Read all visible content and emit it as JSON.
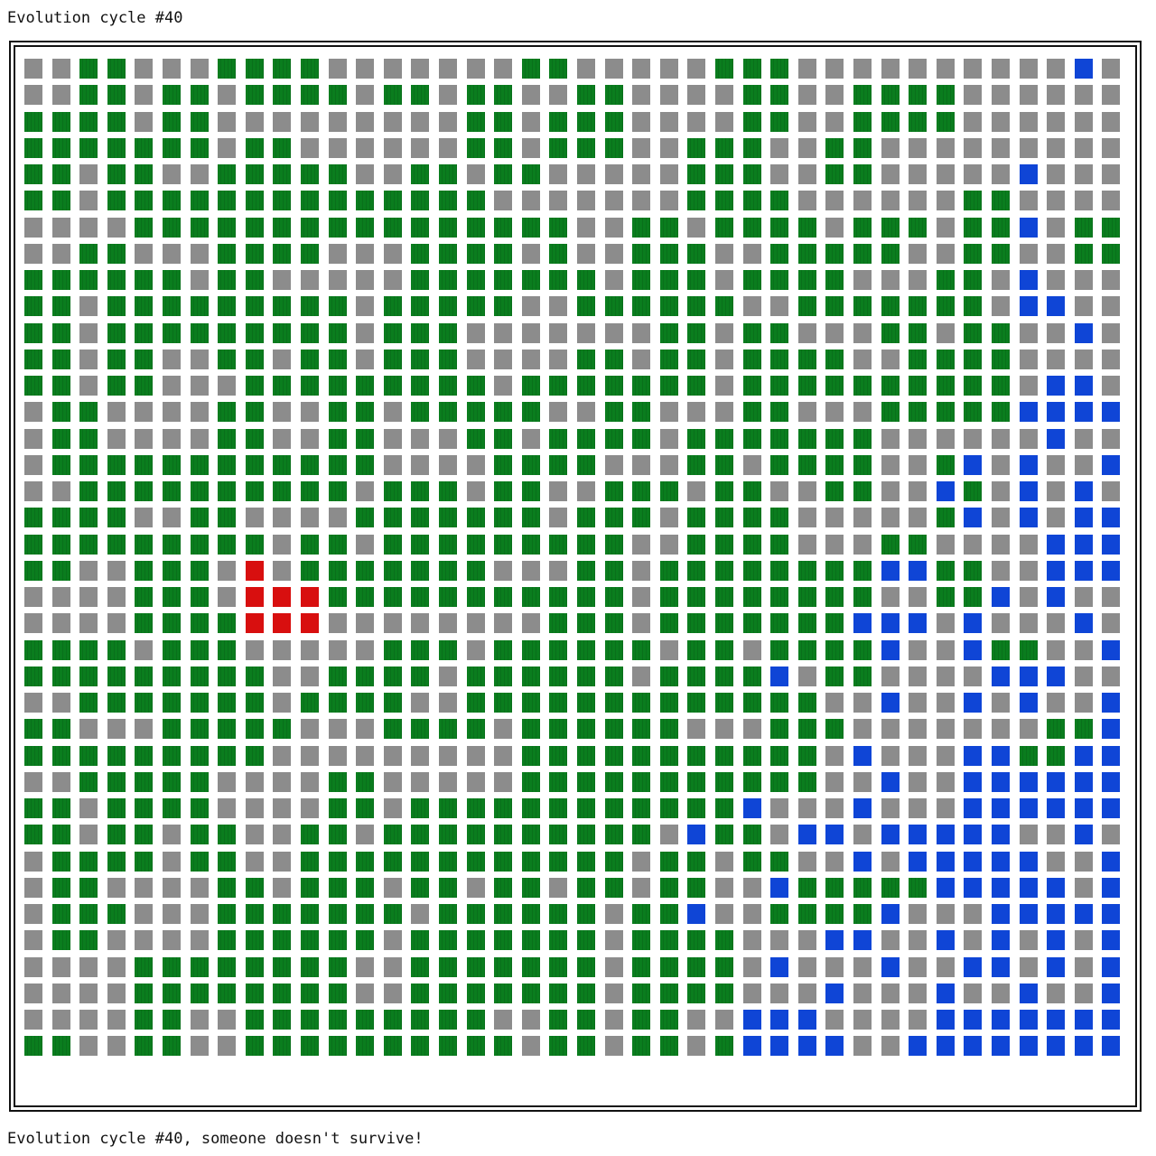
{
  "header": {
    "title": "Evolution cycle #40"
  },
  "footer": {
    "message": "Evolution cycle #40, someone doesn't survive!"
  },
  "colors": {
    "empty": "#8c8c8c",
    "forest": "#0a7d1e",
    "water": "#0f45d6",
    "creature": "#d80f0f"
  },
  "legend": {
    ".": "empty",
    "G": "forest",
    "B": "water",
    "R": "creature"
  },
  "board": {
    "cols": 40,
    "rows": 38,
    "grid": [
      "..GG...GGGG.......GG.....GGG..........B.",
      "..GG.GG.GGGG.GG.GG..GG....GG..GGGG......",
      "GGGG.GG.........GG.GGG....GG..GGGG......",
      "GGGGGGG.GG......GG.GGG..GGG..GG.........",
      "GG.GG..GGGGG..GG.GG.....GGG..GG.....B...",
      "GG.GGGGGGGGGGGGGG.......GGGG......GG....",
      "....GGGGGGGGGGGGGGGG..GG.GGGG.GGG.GGB.GG",
      "..GG...GGGG...GGGG.G..GGG..GGGGG..GG..GG",
      "GGGGGG.GG.....GGGGGGG.GGG.GGGG...GG.B...",
      "GG.GGGGGGGGG.GGGGG..GGGGGG..GGGGGGG.BB..",
      "GG.GGGGGGGGG.GGG.......GG.GG...GG.GG..B.",
      "GG.GG..GG.GG.GGG....GG.GG.GGGG..GGGG....",
      "GG.GG...GGGGGGGGG.GGGGGGG.GGGGGGGGGG.BB.",
      ".GG....GG..GG.GGGGG..GG...GG...GGGGGBBBB",
      ".GG....GG..GG...GG.GGGG.GGGGGGG......B..",
      ".GGGGGGGGGGGG....GGGG...GG.GGGG..GB.B..B",
      "..GGGGGGGGGG.GGG.GG..GGG.GG..GG..BG.B.B.",
      "GGGG..GG....GGGGGGG.GGG.GGGG.....GB.B.BB",
      "GGGGGGGGG.GG.GGGGGGGGG..GGGG...GG....BBB",
      "GG..GGG.R.GGGGGGG...GG.GGGGGGGGBBGG..BBB",
      "....GGG.RRRGGGGGGGGGGG.GGGGGGGG..GGB.B..",
      "....GGGGRRR........GGG.GGGGGGGBBB.B...B.",
      "GGGG.GGG.....GGG.GGGGGG.GG.GGGGB..BGG..B",
      "GGGGGGGGG..GGGG.GGGGGG.GGGGB.GG....BBB..",
      "..GGGGGGG.GGGG..GGGGGGGGGGGGG..B..B.B..B",
      "GG...GGGGG...GGGG.GGGGGG...GGG.......GGB",
      "GGGGGGGGG.........GGGGGGGGGGG.B...BBGGBB",
      "..GGGGG....GG.....GGGGGGGGGGG..B..BBBBBB",
      "GG.GGGG....GG.GGGGGGGGGGGGB...B...BBBBBB",
      "GG.GG.GG..GG.GGGGGGGGGG.BGG.BB.BBBBB..B.",
      ".GGGG.GG..GGGGGGGGGGGG.GG.GG..B.BBBBB..B",
      ".GG....GG.GGG.GG.GG.GG.GG..BGGGGGBBBBB.B",
      ".GGG...GGGGGGG.GGGGGG.GGB..GGGGB...BBBBB",
      ".GG....GGGGGG.GGGGGGG.GGGG...BB..B.B.B.B",
      "....GGGGGGGG..GGGGGGG.GGGG.B...B..BB.B.B",
      "....GGGGGGGG..GGGGGGG.GGGG...B...B..B..B",
      "....GG..GGGGGGGGG..GG.GG..BBB....BBBBBBB",
      "GG..GG..GGGGGGGGGG.GG.GG.GBBBB..BBBBBBBB"
    ]
  }
}
